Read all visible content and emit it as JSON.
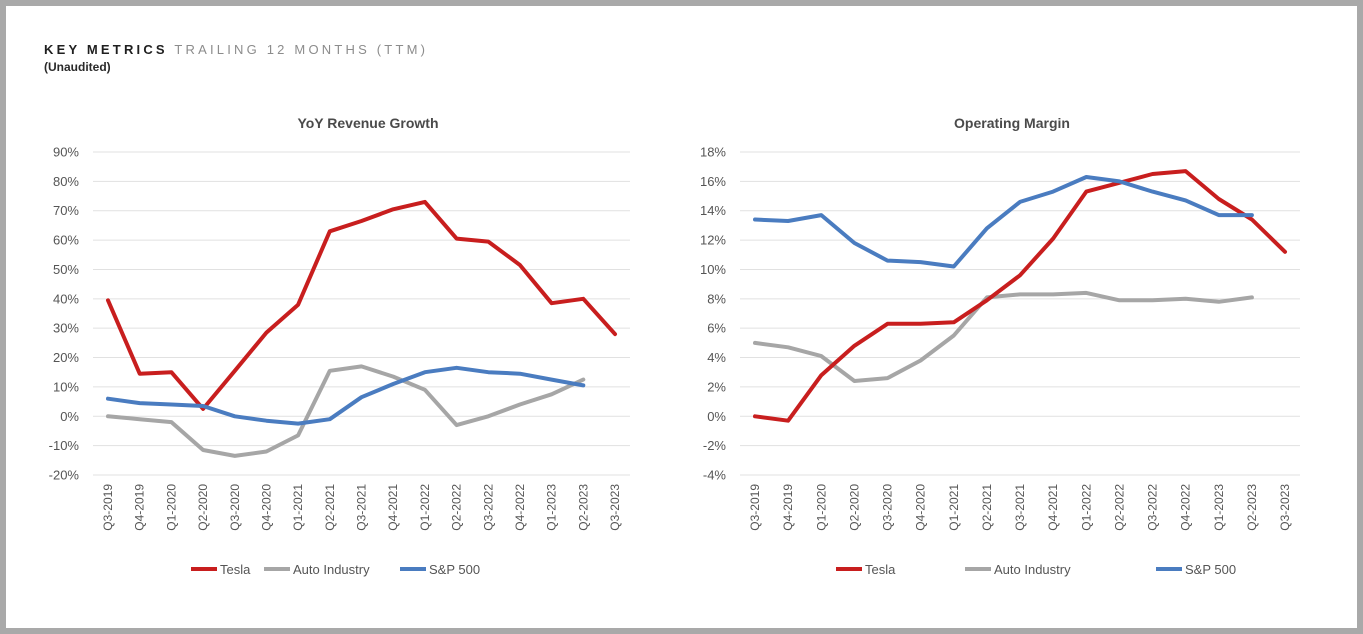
{
  "header": {
    "key_metrics": "KEY METRICS",
    "trailing": "TRAILING 12 MONTHS (TTM)",
    "unaudited": "(Unaudited)"
  },
  "colors": {
    "tesla": "#c81e1e",
    "auto": "#a6a6a6",
    "sp500": "#4a7cc0"
  },
  "chart_data": [
    {
      "type": "line",
      "title": "YoY Revenue Growth",
      "xlabel": "",
      "ylabel": "",
      "ylim": [
        -20,
        90
      ],
      "yticks": [
        -20,
        -10,
        0,
        10,
        20,
        30,
        40,
        50,
        60,
        70,
        80,
        90
      ],
      "ytick_labels": [
        "-20%",
        "-10%",
        "0%",
        "10%",
        "20%",
        "30%",
        "40%",
        "50%",
        "60%",
        "70%",
        "80%",
        "90%"
      ],
      "categories": [
        "Q3-2019",
        "Q4-2019",
        "Q1-2020",
        "Q2-2020",
        "Q3-2020",
        "Q4-2020",
        "Q1-2021",
        "Q2-2021",
        "Q3-2021",
        "Q4-2021",
        "Q1-2022",
        "Q2-2022",
        "Q3-2022",
        "Q4-2022",
        "Q1-2023",
        "Q2-2023",
        "Q3-2023"
      ],
      "legend_position": "bottom",
      "series": [
        {
          "name": "Tesla",
          "color": "#c81e1e",
          "values": [
            39.5,
            14.5,
            15.0,
            2.5,
            15.5,
            28.5,
            38.0,
            63.0,
            66.5,
            70.5,
            73.0,
            60.5,
            59.5,
            51.5,
            38.5,
            40.0,
            28.0
          ]
        },
        {
          "name": "Auto Industry",
          "color": "#a6a6a6",
          "values": [
            0,
            -1.0,
            -2.0,
            -11.5,
            -13.5,
            -12.0,
            -6.5,
            15.5,
            17.0,
            13.5,
            9.0,
            -3.0,
            0,
            4.0,
            7.5,
            12.5,
            null
          ]
        },
        {
          "name": "S&P 500",
          "color": "#4a7cc0",
          "values": [
            6.0,
            4.5,
            4.0,
            3.5,
            0,
            -1.5,
            -2.5,
            -1.0,
            6.5,
            11.0,
            15.0,
            16.5,
            15.0,
            14.5,
            12.5,
            10.5,
            null
          ]
        }
      ]
    },
    {
      "type": "line",
      "title": "Operating Margin",
      "xlabel": "",
      "ylabel": "",
      "ylim": [
        -4,
        18
      ],
      "yticks": [
        -4,
        -2,
        0,
        2,
        4,
        6,
        8,
        10,
        12,
        14,
        16,
        18
      ],
      "ytick_labels": [
        "-4%",
        "-2%",
        "0%",
        "2%",
        "4%",
        "6%",
        "8%",
        "10%",
        "12%",
        "14%",
        "16%",
        "18%"
      ],
      "categories": [
        "Q3-2019",
        "Q4-2019",
        "Q1-2020",
        "Q2-2020",
        "Q3-2020",
        "Q4-2020",
        "Q1-2021",
        "Q2-2021",
        "Q3-2021",
        "Q4-2021",
        "Q1-2022",
        "Q2-2022",
        "Q3-2022",
        "Q4-2022",
        "Q1-2023",
        "Q2-2023",
        "Q3-2023"
      ],
      "legend_position": "bottom",
      "series": [
        {
          "name": "Tesla",
          "color": "#c81e1e",
          "values": [
            0,
            -0.3,
            2.8,
            4.8,
            6.3,
            6.3,
            6.4,
            7.9,
            9.6,
            12.1,
            15.3,
            15.9,
            16.5,
            16.7,
            14.8,
            13.4,
            11.2
          ]
        },
        {
          "name": "Auto Industry",
          "color": "#a6a6a6",
          "values": [
            5.0,
            4.7,
            4.1,
            2.4,
            2.6,
            3.8,
            5.5,
            8.1,
            8.3,
            8.3,
            8.4,
            7.9,
            7.9,
            8.0,
            7.8,
            8.1,
            null
          ]
        },
        {
          "name": "S&P 500",
          "color": "#4a7cc0",
          "values": [
            13.4,
            13.3,
            13.7,
            11.8,
            10.6,
            10.5,
            10.2,
            12.8,
            14.6,
            15.3,
            16.3,
            16.0,
            15.3,
            14.7,
            13.7,
            13.7,
            null
          ]
        }
      ]
    }
  ]
}
